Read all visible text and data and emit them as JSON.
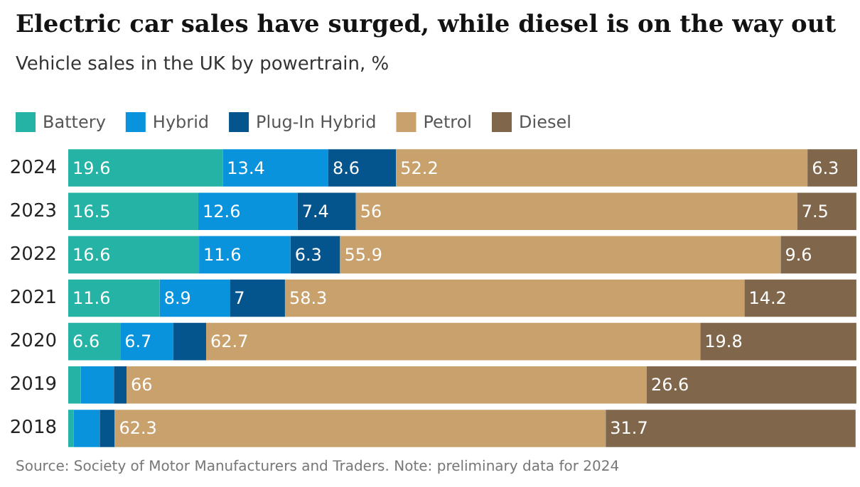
{
  "chart_data": {
    "type": "bar",
    "orientation": "horizontal",
    "stacked": true,
    "title": "Electric car sales have surged, while diesel is on the way out",
    "subtitle": "Vehicle sales in the UK by powertrain, %",
    "categories": [
      "2024",
      "2023",
      "2022",
      "2021",
      "2020",
      "2019",
      "2018"
    ],
    "series": [
      {
        "name": "Battery",
        "color": "#24b3a5",
        "values": [
          19.6,
          16.5,
          16.6,
          11.6,
          6.6,
          1.6,
          0.7
        ],
        "value_labels": [
          "19.6",
          "16.5",
          "16.6",
          "11.6",
          "6.6",
          null,
          null
        ]
      },
      {
        "name": "Hybrid",
        "color": "#0a93dd",
        "values": [
          13.4,
          12.6,
          11.6,
          8.9,
          6.7,
          4.2,
          3.3
        ],
        "value_labels": [
          "13.4",
          "12.6",
          "11.6",
          "8.9",
          "6.7",
          null,
          null
        ]
      },
      {
        "name": "Plug-In Hybrid",
        "color": "#04548d",
        "values": [
          8.6,
          7.4,
          6.3,
          7,
          4.2,
          1.6,
          1.9
        ],
        "value_labels": [
          "8.6",
          "7.4",
          "6.3",
          "7",
          null,
          null,
          null
        ]
      },
      {
        "name": "Petrol",
        "color": "#c8a16c",
        "values": [
          52.2,
          56,
          55.9,
          58.3,
          62.7,
          66,
          62.3
        ],
        "value_labels": [
          "52.2",
          "56",
          "55.9",
          "58.3",
          "62.7",
          "66",
          "62.3"
        ]
      },
      {
        "name": "Diesel",
        "color": "#80674c",
        "values": [
          6.3,
          7.5,
          9.6,
          14.2,
          19.8,
          26.6,
          31.7
        ],
        "value_labels": [
          "6.3",
          "7.5",
          "9.6",
          "14.2",
          "19.8",
          "26.6",
          "31.7"
        ]
      }
    ],
    "xlim": [
      0,
      100.1
    ],
    "tick_labels": "y",
    "legend": "top left",
    "annotations": [
      "Source: Society of Motor Manufacturers and Traders. Note: preliminary data for 2024"
    ]
  }
}
